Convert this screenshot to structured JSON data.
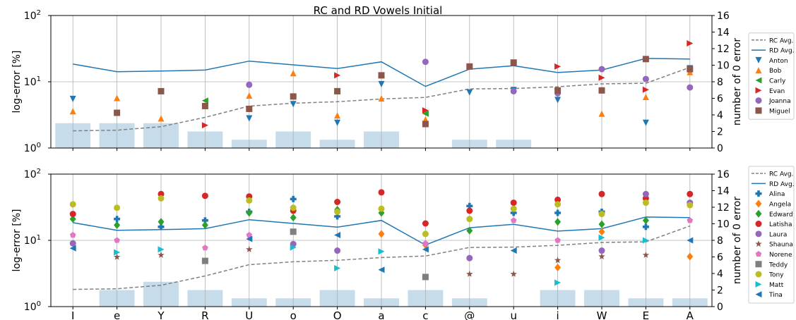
{
  "title": "RC and RD Vowels Initial",
  "colors": {
    "rc_avg": "#808080",
    "rd_avg": "#1f77b4",
    "bar": "#c7dcea",
    "grid": "#b0b0b0"
  },
  "chart_data": [
    {
      "type": "mixed",
      "position": "top",
      "title": "RC and RD Vowels Initial",
      "ylabel_left": "log-error [%]",
      "ylabel_right": "number of 0 error",
      "y_left": {
        "scale": "log",
        "ticks": [
          1,
          10,
          100
        ],
        "tick_labels": [
          "10",
          "10",
          "10"
        ],
        "tick_exps": [
          "0",
          "1",
          "2"
        ]
      },
      "y_right": {
        "ylim": [
          0,
          16
        ],
        "ticks": [
          0,
          2,
          4,
          6,
          8,
          10,
          12,
          14,
          16
        ]
      },
      "categories": [
        "I",
        "e",
        "Y",
        "R",
        "U",
        "o",
        "O",
        "a",
        "c",
        "@",
        "u",
        "i",
        "W",
        "E",
        "A"
      ],
      "show_x_labels": false,
      "legend_placement": "right",
      "bars": [
        3,
        3,
        3,
        2,
        1,
        2,
        1,
        2,
        0,
        1,
        1,
        0,
        0,
        0,
        0
      ],
      "lines": [
        {
          "name": "RC Avg.",
          "style": "dashed",
          "color": "#808080",
          "values": [
            1.82,
            1.86,
            2.1,
            2.9,
            4.3,
            4.75,
            5.0,
            5.5,
            5.8,
            7.8,
            7.9,
            8.4,
            9.3,
            9.5,
            16.5
          ]
        },
        {
          "name": "RD Avg.",
          "style": "solid",
          "color": "#1f77b4",
          "values": [
            18.5,
            14.2,
            14.5,
            15.0,
            20.5,
            18.0,
            15.8,
            20.0,
            8.5,
            15.5,
            17.5,
            13.8,
            15.0,
            22.5,
            22.0
          ]
        }
      ],
      "series": [
        {
          "name": "Anton",
          "marker": "triangle-down",
          "color": "#1f77b4",
          "values": [
            5.5,
            null,
            null,
            null,
            2.8,
            4.6,
            2.4,
            9.2,
            null,
            6.9,
            7.5,
            5.3,
            null,
            2.4,
            16.0
          ]
        },
        {
          "name": "Bob",
          "marker": "triangle-up",
          "color": "#ff7f0e",
          "values": [
            3.6,
            5.7,
            2.8,
            null,
            6.2,
            13.5,
            3.1,
            5.6,
            2.7,
            null,
            null,
            null,
            3.3,
            5.9,
            14.0
          ]
        },
        {
          "name": "Carly",
          "marker": "triangle-left",
          "color": "#2ca02c",
          "values": [
            null,
            null,
            null,
            5.2,
            null,
            null,
            null,
            null,
            3.3,
            null,
            null,
            null,
            null,
            null,
            null
          ]
        },
        {
          "name": "Evan",
          "marker": "triangle-right",
          "color": "#d62728",
          "values": [
            null,
            null,
            null,
            2.2,
            null,
            null,
            12.5,
            null,
            3.7,
            null,
            null,
            17.0,
            11.5,
            7.6,
            38.0
          ]
        },
        {
          "name": "Joanna",
          "marker": "circle",
          "color": "#9467bd",
          "values": [
            null,
            null,
            null,
            null,
            9.0,
            null,
            null,
            null,
            20.0,
            null,
            7.2,
            6.7,
            15.5,
            11.0,
            8.2
          ]
        },
        {
          "name": "Miguel",
          "marker": "square",
          "color": "#8c564b",
          "values": [
            null,
            3.4,
            7.2,
            4.3,
            3.9,
            6.0,
            7.2,
            12.5,
            2.3,
            17.0,
            19.5,
            7.4,
            7.4,
            22.0,
            15.5
          ]
        }
      ]
    },
    {
      "type": "mixed",
      "position": "bottom",
      "ylabel_left": "log-error [%]",
      "ylabel_right": "number of 0 error",
      "y_left": {
        "scale": "log",
        "ticks": [
          1,
          10,
          100
        ],
        "tick_labels": [
          "10",
          "10",
          "10"
        ],
        "tick_exps": [
          "0",
          "1",
          "2"
        ]
      },
      "y_right": {
        "ylim": [
          0,
          16
        ],
        "ticks": [
          0,
          2,
          4,
          6,
          8,
          10,
          12,
          14,
          16
        ]
      },
      "categories": [
        "I",
        "e",
        "Y",
        "R",
        "U",
        "o",
        "O",
        "a",
        "c",
        "@",
        "u",
        "i",
        "W",
        "E",
        "A"
      ],
      "show_x_labels": true,
      "legend_placement": "right",
      "bars": [
        0,
        2,
        3,
        2,
        1,
        1,
        2,
        1,
        2,
        1,
        0,
        2,
        2,
        1,
        1
      ],
      "lines": [
        {
          "name": "RC Avg.",
          "style": "dashed",
          "color": "#808080",
          "values": [
            1.82,
            1.86,
            2.1,
            2.9,
            4.3,
            4.75,
            5.0,
            5.5,
            5.8,
            7.8,
            7.9,
            8.4,
            9.3,
            9.5,
            16.5
          ]
        },
        {
          "name": "RD Avg.",
          "style": "solid",
          "color": "#1f77b4",
          "values": [
            18.5,
            14.2,
            14.5,
            15.0,
            20.5,
            18.0,
            15.8,
            20.0,
            8.5,
            15.5,
            17.5,
            13.8,
            15.0,
            22.5,
            22.0
          ]
        }
      ],
      "series": [
        {
          "name": "Alina",
          "marker": "plus",
          "color": "#1f77b4",
          "values": [
            null,
            21.0,
            16.0,
            20.0,
            27.0,
            42.0,
            23.0,
            null,
            null,
            33.0,
            26.0,
            26.0,
            27.0,
            16.0,
            null
          ]
        },
        {
          "name": "Angela",
          "marker": "diamond",
          "color": "#ff7f0e",
          "values": [
            null,
            null,
            null,
            null,
            null,
            null,
            null,
            12.5,
            8.5,
            null,
            null,
            3.9,
            13.5,
            null,
            5.7
          ]
        },
        {
          "name": "Edward",
          "marker": "diamond",
          "color": "#2ca02c",
          "values": [
            21.0,
            17.0,
            19.0,
            17.0,
            26.0,
            22.0,
            29.0,
            26.0,
            null,
            14.0,
            30.0,
            19.0,
            17.5,
            20.0,
            null
          ]
        },
        {
          "name": "Latisha",
          "marker": "circle",
          "color": "#d62728",
          "values": [
            25.0,
            null,
            50.0,
            47.0,
            46.0,
            28.0,
            38.0,
            53.0,
            18.0,
            28.0,
            37.0,
            41.0,
            50.0,
            43.0,
            50.0
          ]
        },
        {
          "name": "Laura",
          "marker": "circle",
          "color": "#9467bd",
          "values": [
            9.0,
            null,
            null,
            null,
            null,
            8.8,
            7.0,
            null,
            null,
            5.4,
            null,
            null,
            7.0,
            50.0,
            37.0
          ]
        },
        {
          "name": "Shauna",
          "marker": "star",
          "color": "#8c564b",
          "values": [
            null,
            5.6,
            6.0,
            null,
            7.3,
            null,
            null,
            null,
            null,
            3.1,
            3.1,
            5.0,
            5.7,
            6.0,
            null
          ]
        },
        {
          "name": "Norene",
          "marker": "pentagon",
          "color": "#e377c2",
          "values": [
            12.0,
            10.0,
            null,
            7.7,
            12.0,
            null,
            null,
            null,
            9.0,
            null,
            20.0,
            10.0,
            null,
            null,
            20.0
          ]
        },
        {
          "name": "Teddy",
          "marker": "square",
          "color": "#7f7f7f",
          "values": [
            null,
            null,
            null,
            4.9,
            null,
            13.5,
            null,
            null,
            2.8,
            null,
            null,
            null,
            null,
            null,
            null
          ]
        },
        {
          "name": "Tony",
          "marker": "circle",
          "color": "#bcbd22",
          "values": [
            35.0,
            31.0,
            43.0,
            null,
            40.0,
            31.0,
            27.0,
            30.0,
            12.5,
            21.0,
            30.0,
            35.0,
            25.0,
            37.0,
            34.0
          ]
        },
        {
          "name": "Matt",
          "marker": "triangle-right",
          "color": "#17becf",
          "values": [
            null,
            6.6,
            7.3,
            null,
            null,
            7.8,
            3.8,
            6.8,
            null,
            null,
            null,
            2.3,
            11.0,
            10.0,
            null
          ]
        },
        {
          "name": "Tina",
          "marker": "triangle-left",
          "color": "#1f77b4",
          "values": [
            7.6,
            null,
            null,
            null,
            10.5,
            null,
            12.0,
            3.6,
            7.3,
            null,
            7.0,
            null,
            null,
            null,
            10.0
          ]
        }
      ]
    }
  ]
}
